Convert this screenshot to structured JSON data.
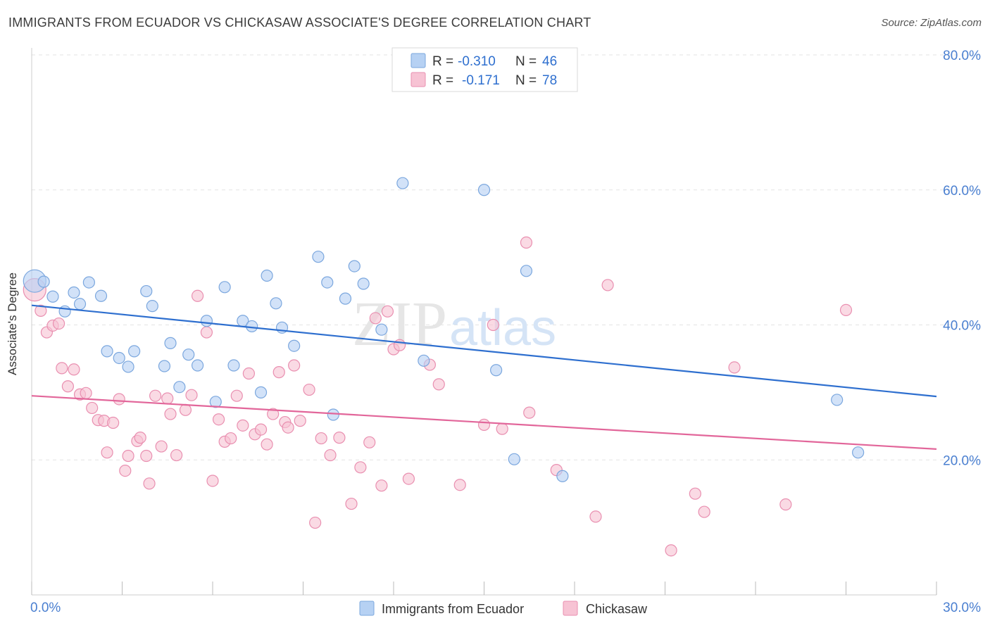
{
  "title": "IMMIGRANTS FROM ECUADOR VS CHICKASAW ASSOCIATE'S DEGREE CORRELATION CHART",
  "source": "Source: ZipAtlas.com",
  "watermark": {
    "zip": "ZIP",
    "atlas": "atlas"
  },
  "colors": {
    "blue_fill": "#b6d1f3",
    "blue_stroke": "#7ba7de",
    "blue_line": "#2e6fcf",
    "pink_fill": "#f7c3d4",
    "pink_stroke": "#e98fb0",
    "pink_line": "#e2669a",
    "axis_label": "#4a7fd0",
    "grid": "#e3e3e3"
  },
  "legend": {
    "rows": [
      {
        "r_label": "R =",
        "r_value": "-0.310",
        "n_label": "N =",
        "n_value": "46",
        "color": "blue"
      },
      {
        "r_label": "R =",
        "r_value": "-0.171",
        "n_label": "N =",
        "n_value": "78",
        "color": "pink"
      }
    ]
  },
  "bottom_legend": [
    "Immigrants from Ecuador",
    "Chickasaw"
  ],
  "chart_data": {
    "type": "scatter",
    "title": "IMMIGRANTS FROM ECUADOR VS CHICKASAW ASSOCIATE'S DEGREE CORRELATION CHART",
    "xlabel": "",
    "ylabel": "Associate's Degree",
    "xlim": [
      0,
      30
    ],
    "ylim": [
      0,
      80
    ],
    "x_tick_labels": [
      "0.0%",
      "30.0%"
    ],
    "y_ticks": [
      20,
      40,
      60,
      80
    ],
    "y_tick_labels": [
      "20.0%",
      "40.0%",
      "60.0%",
      "80.0%"
    ],
    "grid": true,
    "legend_position": "top-center",
    "series": [
      {
        "name": "Immigrants from Ecuador",
        "color": "blue",
        "trend": {
          "x": [
            0,
            30
          ],
          "y": [
            42.9,
            29.4
          ]
        },
        "points": [
          [
            0.1,
            46.5
          ],
          [
            0.4,
            46.4
          ],
          [
            0.7,
            44.2
          ],
          [
            1.1,
            42.0
          ],
          [
            1.4,
            44.8
          ],
          [
            1.6,
            43.1
          ],
          [
            1.9,
            46.3
          ],
          [
            2.3,
            44.3
          ],
          [
            2.5,
            36.1
          ],
          [
            2.9,
            35.1
          ],
          [
            3.2,
            33.8
          ],
          [
            3.4,
            36.1
          ],
          [
            3.8,
            45.0
          ],
          [
            4.0,
            42.8
          ],
          [
            4.4,
            33.9
          ],
          [
            4.6,
            37.3
          ],
          [
            4.9,
            30.8
          ],
          [
            5.2,
            35.6
          ],
          [
            5.5,
            34.0
          ],
          [
            5.8,
            40.6
          ],
          [
            6.1,
            28.6
          ],
          [
            6.4,
            45.6
          ],
          [
            6.7,
            34.0
          ],
          [
            7.0,
            40.6
          ],
          [
            7.3,
            39.8
          ],
          [
            7.6,
            30.0
          ],
          [
            7.8,
            47.3
          ],
          [
            8.1,
            43.2
          ],
          [
            8.3,
            39.6
          ],
          [
            8.7,
            36.9
          ],
          [
            9.5,
            50.1
          ],
          [
            9.8,
            46.3
          ],
          [
            10.0,
            26.7
          ],
          [
            10.4,
            43.9
          ],
          [
            10.7,
            48.7
          ],
          [
            11.0,
            46.1
          ],
          [
            11.6,
            39.3
          ],
          [
            12.3,
            61.0
          ],
          [
            13.0,
            34.7
          ],
          [
            15.0,
            60.0
          ],
          [
            15.4,
            33.3
          ],
          [
            16.0,
            20.1
          ],
          [
            16.4,
            48.0
          ],
          [
            17.6,
            17.6
          ],
          [
            26.7,
            28.9
          ],
          [
            27.4,
            21.1
          ]
        ]
      },
      {
        "name": "Chickasaw",
        "color": "pink",
        "trend": {
          "x": [
            0,
            30
          ],
          "y": [
            29.5,
            21.6
          ]
        },
        "points": [
          [
            0.1,
            45.2
          ],
          [
            0.3,
            42.1
          ],
          [
            0.5,
            38.9
          ],
          [
            0.7,
            39.9
          ],
          [
            0.9,
            40.2
          ],
          [
            1.0,
            33.6
          ],
          [
            1.2,
            30.9
          ],
          [
            1.4,
            33.4
          ],
          [
            1.6,
            29.7
          ],
          [
            1.8,
            29.9
          ],
          [
            2.0,
            27.7
          ],
          [
            2.2,
            25.9
          ],
          [
            2.4,
            25.8
          ],
          [
            2.5,
            21.1
          ],
          [
            2.7,
            25.5
          ],
          [
            2.9,
            29.0
          ],
          [
            3.1,
            18.4
          ],
          [
            3.2,
            20.6
          ],
          [
            3.5,
            22.8
          ],
          [
            3.6,
            23.3
          ],
          [
            3.8,
            20.6
          ],
          [
            3.9,
            16.5
          ],
          [
            4.1,
            29.5
          ],
          [
            4.3,
            22.0
          ],
          [
            4.5,
            29.1
          ],
          [
            4.6,
            26.8
          ],
          [
            4.8,
            20.7
          ],
          [
            5.1,
            27.4
          ],
          [
            5.3,
            29.6
          ],
          [
            5.5,
            44.3
          ],
          [
            5.8,
            38.9
          ],
          [
            6.0,
            16.9
          ],
          [
            6.2,
            26.0
          ],
          [
            6.4,
            22.7
          ],
          [
            6.6,
            23.2
          ],
          [
            6.8,
            29.5
          ],
          [
            7.0,
            25.1
          ],
          [
            7.2,
            32.8
          ],
          [
            7.4,
            23.8
          ],
          [
            7.6,
            24.5
          ],
          [
            7.8,
            22.3
          ],
          [
            8.0,
            26.8
          ],
          [
            8.2,
            33.0
          ],
          [
            8.4,
            25.6
          ],
          [
            8.5,
            24.8
          ],
          [
            8.7,
            34.0
          ],
          [
            8.9,
            25.8
          ],
          [
            9.2,
            30.4
          ],
          [
            9.4,
            10.7
          ],
          [
            9.6,
            23.2
          ],
          [
            9.9,
            20.7
          ],
          [
            10.2,
            23.3
          ],
          [
            10.6,
            13.5
          ],
          [
            10.9,
            18.9
          ],
          [
            11.2,
            22.6
          ],
          [
            11.4,
            41.0
          ],
          [
            11.6,
            16.2
          ],
          [
            11.8,
            42.0
          ],
          [
            12.0,
            36.4
          ],
          [
            12.2,
            37.0
          ],
          [
            12.5,
            17.2
          ],
          [
            13.2,
            34.1
          ],
          [
            13.5,
            31.2
          ],
          [
            14.2,
            16.3
          ],
          [
            15.0,
            25.2
          ],
          [
            15.3,
            40.0
          ],
          [
            15.6,
            24.6
          ],
          [
            16.4,
            52.2
          ],
          [
            16.5,
            27.0
          ],
          [
            17.4,
            18.5
          ],
          [
            18.7,
            11.6
          ],
          [
            19.1,
            45.9
          ],
          [
            21.2,
            6.6
          ],
          [
            22.0,
            15.0
          ],
          [
            22.3,
            12.3
          ],
          [
            23.3,
            33.7
          ],
          [
            25.0,
            13.4
          ],
          [
            27.0,
            42.2
          ]
        ]
      }
    ]
  }
}
